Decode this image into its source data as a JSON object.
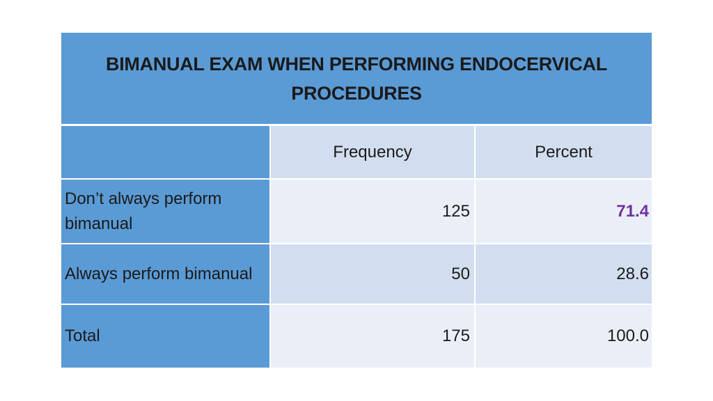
{
  "table": {
    "title": "BIMANUAL EXAM WHEN PERFORMING ENDOCERVICAL PROCEDURES",
    "headers": {
      "label": "",
      "frequency": "Frequency",
      "percent": "Percent"
    },
    "rows": [
      {
        "label": "Don’t always perform bimanual",
        "frequency": "125",
        "percent": "71.4",
        "percent_highlighted": true
      },
      {
        "label": "Always perform bimanual",
        "frequency": "50",
        "percent": "28.6",
        "percent_highlighted": false
      },
      {
        "label": "Total",
        "frequency": "175",
        "percent": "100.0",
        "percent_highlighted": false
      }
    ]
  },
  "colors": {
    "label_column": "#5b9bd5",
    "row_dark": "#d2deef",
    "row_light": "#eaeff7",
    "highlight_text": "#7030a0"
  }
}
